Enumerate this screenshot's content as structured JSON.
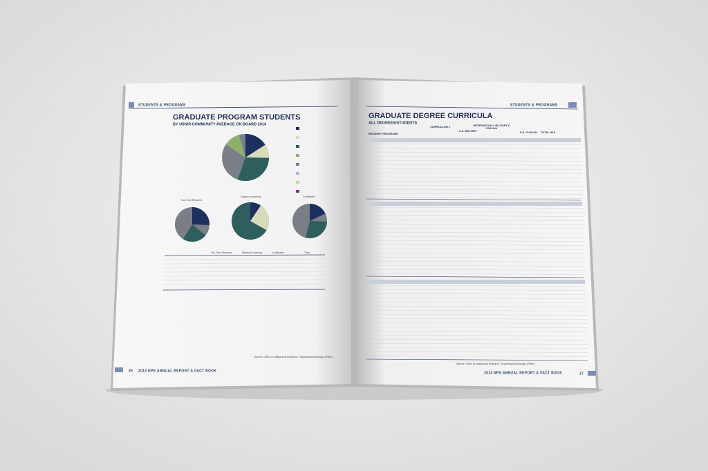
{
  "left_page": {
    "running_head": "STUDENTS & PROGRAMS",
    "title": "GRADUATE PROGRAM STUDENTS",
    "subtitle": "BY USN/R COMMUNITY AVERAGE ON BOARD 2014",
    "pie_titles": [
      "Full-Time Resident",
      "Distance Learning",
      "Certificates"
    ],
    "table_headers": [
      "Full-Time Resident",
      "Distance Learning",
      "Certificates",
      "Total"
    ],
    "source": "Source: Office of Institutional Research, Reporting and Analysis (IRRA)",
    "page_number": "26",
    "footer": "2014 NPS ANNUAL REPORT & FACT BOOK"
  },
  "right_page": {
    "running_head": "STUDENTS & PROGRAMS",
    "title": "GRADUATE DEGREE CURRICULA",
    "subtitle": "ALL DEGREES/STUDENTS",
    "columns": [
      "RESIDENT PROGRAMS",
      "CURRICULUM #",
      "U.S. MILITARY",
      "INTERNATIONAL MILITARY & CIVILIAN",
      "U.S. CIVILIAN",
      "TOTAL NPS"
    ],
    "source": "Source: Office of Institutional Research, Reporting and Analysis (IRRA)",
    "page_number": "27",
    "footer": "2014 NPS ANNUAL REPORT & FACT BOOK"
  }
}
